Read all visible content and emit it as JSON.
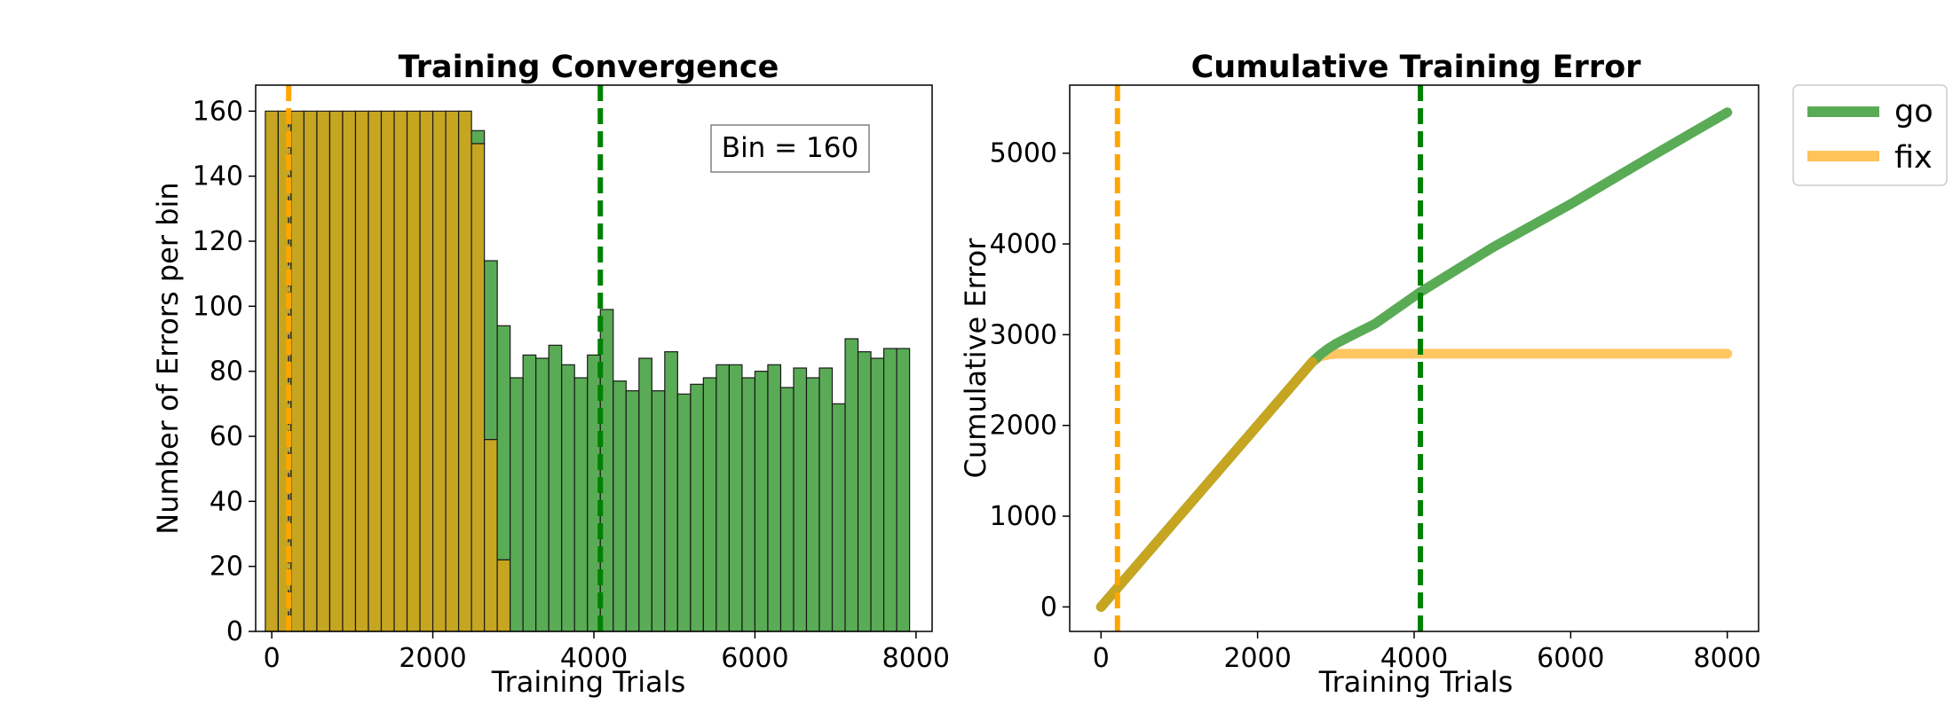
{
  "colors": {
    "go": "#5aab55",
    "fix": "#ffc35a",
    "overlap": "#c6a521",
    "go_line": "#008000",
    "fix_line": "#ffa500",
    "edge": "#1a1a1a"
  },
  "chart_data": [
    {
      "type": "bar",
      "title": "Training Convergence",
      "xlabel": "Training Trials",
      "ylabel": "Number of Errors per bin",
      "xlim": [
        -200,
        8200
      ],
      "ylim": [
        0,
        168
      ],
      "xticks": [
        0,
        2000,
        4000,
        6000,
        8000
      ],
      "yticks": [
        0,
        20,
        40,
        60,
        80,
        100,
        120,
        140,
        160
      ],
      "annotation": "Bin = 160",
      "bin_width": 160,
      "bin_start": -80,
      "series": [
        {
          "name": "go",
          "values": [
            160,
            160,
            160,
            160,
            160,
            160,
            160,
            160,
            160,
            160,
            160,
            160,
            160,
            160,
            160,
            160,
            154,
            114,
            94,
            78,
            85,
            84,
            88,
            82,
            78,
            85,
            99,
            77,
            74,
            84,
            74,
            86,
            73,
            76,
            78,
            82,
            82,
            78,
            80,
            82,
            75,
            81,
            78,
            81,
            70,
            90,
            86,
            84,
            87,
            87
          ]
        },
        {
          "name": "fix",
          "values": [
            160,
            160,
            160,
            160,
            160,
            160,
            160,
            160,
            160,
            160,
            160,
            160,
            160,
            160,
            160,
            160,
            150,
            59,
            22
          ]
        }
      ],
      "vlines": [
        {
          "name": "fix-converged",
          "x": 210,
          "color": "fix_line"
        },
        {
          "name": "go-converged",
          "x": 4080,
          "color": "go_line"
        }
      ],
      "inner_vline_x": 210
    },
    {
      "type": "line",
      "title": "Cumulative Training Error",
      "xlabel": "Training Trials",
      "ylabel": "Cumulative Error",
      "xlim": [
        -400,
        8400
      ],
      "ylim": [
        -270,
        5750
      ],
      "xticks": [
        0,
        2000,
        4000,
        6000,
        8000
      ],
      "yticks": [
        0,
        1000,
        2000,
        3000,
        4000,
        5000
      ],
      "series": [
        {
          "name": "go",
          "x": [
            0,
            2700,
            2800,
            2900,
            3000,
            3200,
            3500,
            4080,
            5000,
            6000,
            7000,
            8000
          ],
          "y": [
            0,
            2700,
            2780,
            2845,
            2900,
            2990,
            3120,
            3470,
            3960,
            4440,
            4950,
            5450
          ]
        },
        {
          "name": "fix",
          "x": [
            0,
            2700,
            2800,
            2900,
            3000,
            8000
          ],
          "y": [
            0,
            2700,
            2760,
            2780,
            2790,
            2790
          ]
        }
      ],
      "vlines": [
        {
          "name": "fix-converged",
          "x": 210,
          "color": "fix_line"
        },
        {
          "name": "go-converged",
          "x": 4080,
          "color": "go_line"
        }
      ]
    }
  ],
  "legend": {
    "position": "outside-right",
    "entries": [
      {
        "label": "go",
        "color": "go"
      },
      {
        "label": "fix",
        "color": "fix"
      }
    ]
  }
}
